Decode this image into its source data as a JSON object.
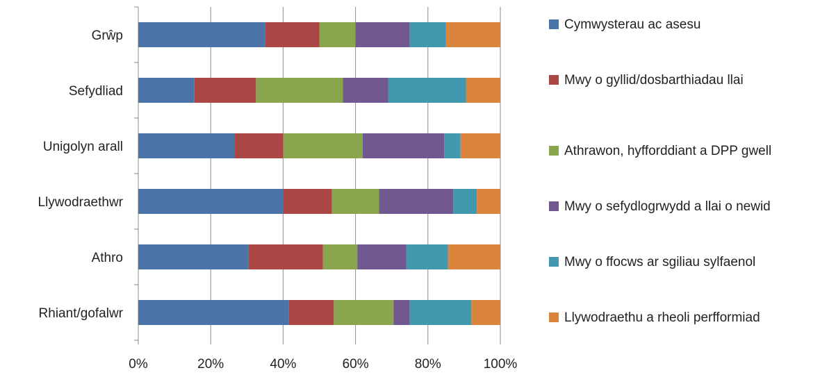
{
  "chart_data": {
    "type": "bar",
    "orientation": "horizontal",
    "stacked": "percent",
    "categories": [
      "Grŵp",
      "Sefydliad",
      "Unigolyn arall",
      "Llywodraethwr",
      "Athro",
      "Rhiant/gofalwr"
    ],
    "x_ticks": [
      "0%",
      "20%",
      "40%",
      "60%",
      "80%",
      "100%"
    ],
    "xlim": [
      0,
      100
    ],
    "grid": "vertical",
    "legend_position": "right",
    "series": [
      {
        "name": "Cymwysterau ac asesu",
        "color": "#4a74a8",
        "values": [
          35,
          15.5,
          26.5,
          40,
          30.5,
          41.5
        ]
      },
      {
        "name": "Mwy o gyllid/dosbarthiadau llai",
        "color": "#aa4643",
        "values": [
          15,
          17,
          13.5,
          13.5,
          20.5,
          12.5
        ]
      },
      {
        "name": "Athrawon, hyfforddiant a DPP gwell",
        "color": "#89a54e",
        "values": [
          10,
          24,
          22,
          13,
          9.5,
          16.5
        ]
      },
      {
        "name": "Mwy o sefydlogrwydd a llai o newid",
        "color": "#71588f",
        "values": [
          15,
          12.5,
          22.5,
          20.5,
          13.5,
          4.5
        ]
      },
      {
        "name": "Mwy o ffocws ar sgiliau sylfaenol",
        "color": "#4198af",
        "values": [
          10,
          21.5,
          4.5,
          6.5,
          11.5,
          17
        ]
      },
      {
        "name": "Llywodraethu a rheoli perfformiad",
        "color": "#db843d",
        "values": [
          15,
          9.5,
          11,
          6.5,
          14.5,
          8
        ]
      }
    ]
  }
}
